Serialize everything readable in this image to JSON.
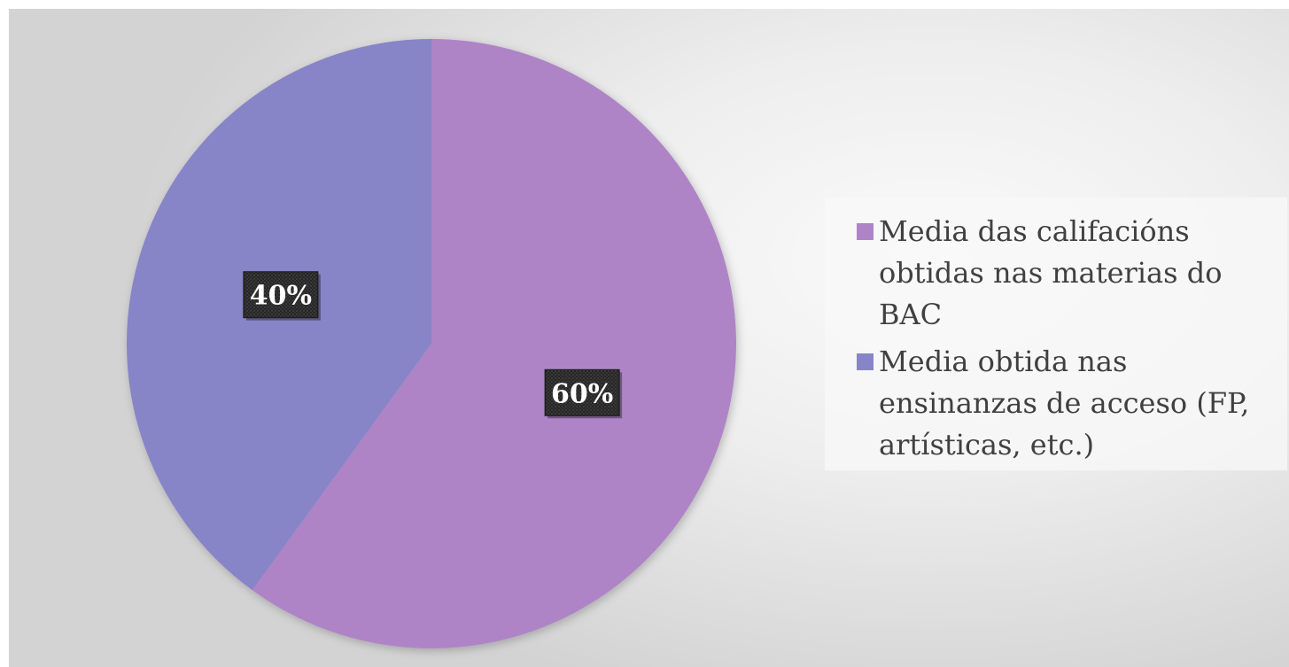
{
  "chart_data": {
    "type": "pie",
    "categories": [
      "Media das califacións obtidas nas materias do BAC",
      "Media obtida nas ensinanzas de acceso (FP, artísticas, etc.)"
    ],
    "values": [
      60,
      40
    ],
    "labels": [
      "60%",
      "40%"
    ],
    "colors": [
      "#ae84c7",
      "#8785c7"
    ],
    "legend_position": "right",
    "title": ""
  },
  "legend": {
    "items": [
      {
        "label": "Media das califacións obtidas nas materias do BAC",
        "color": "#ae84c7"
      },
      {
        "label": "Media obtida nas ensinanzas de acceso (FP, artísticas, etc.)",
        "color": "#8785c7"
      }
    ]
  }
}
